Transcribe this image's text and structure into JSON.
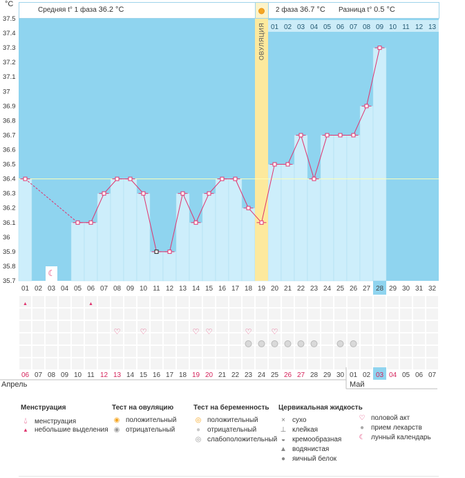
{
  "header": {
    "temp_unit": "°C",
    "phase1_label": "Средняя t° 1 фаза",
    "phase1_value": "36.2 °C",
    "phase2_label": "2 фаза",
    "phase2_value": "36.7 °C",
    "diff_label": "Разница t°",
    "diff_value": "0.5 °C"
  },
  "colors": {
    "sky": "#8fd4ef",
    "bar": "#cdeefb",
    "bar_edge": "#a9dcf0",
    "line": "#e0336e",
    "ovulation_band": "#fde99d",
    "coverline": "#ffffb8",
    "red_day": "#d4235b",
    "grid_bg": "#f4f4f4"
  },
  "ovulation_label": "ОВУЛЯЦИЯ",
  "chart_data": {
    "type": "bar",
    "ylim": [
      35.7,
      37.5
    ],
    "yticks": [
      "37.5",
      "37.4",
      "37.3",
      "37.2",
      "37.1",
      "37",
      "36.9",
      "36.8",
      "36.7",
      "36.6",
      "36.5",
      "36.4",
      "36.3",
      "36.2",
      "36.1",
      "36",
      "35.9",
      "35.8",
      "35.7"
    ],
    "coverline": 36.4,
    "ovulation_index": 18,
    "cycle_days": [
      "01",
      "02",
      "03",
      "04",
      "05",
      "06",
      "07",
      "08",
      "09",
      "10",
      "11",
      "12",
      "13",
      "14",
      "15",
      "16",
      "17",
      "18",
      "19",
      "20",
      "21",
      "22",
      "23",
      "24",
      "25",
      "26",
      "27",
      "28",
      "29",
      "30",
      "31",
      "32"
    ],
    "current_cycle_day": "28",
    "post_ovulation_days": [
      "01",
      "02",
      "03",
      "04",
      "05",
      "06",
      "07",
      "08",
      "09",
      "10",
      "11",
      "12",
      "13"
    ],
    "temperatures": [
      36.4,
      null,
      null,
      null,
      36.1,
      36.1,
      36.3,
      36.4,
      36.4,
      36.3,
      35.9,
      35.9,
      36.3,
      36.1,
      36.3,
      36.4,
      36.4,
      36.2,
      36.1,
      36.5,
      36.5,
      36.7,
      36.4,
      36.7,
      36.7,
      36.7,
      36.9,
      37.3,
      null,
      null,
      null,
      null
    ],
    "highlight_point_index": 10,
    "dates": [
      "06",
      "07",
      "08",
      "09",
      "10",
      "11",
      "12",
      "13",
      "14",
      "15",
      "16",
      "17",
      "18",
      "19",
      "20",
      "21",
      "22",
      "23",
      "24",
      "25",
      "26",
      "27",
      "28",
      "29",
      "30",
      "01",
      "02",
      "03",
      "04",
      "05",
      "06",
      "07"
    ],
    "red_date_indices": [
      0,
      6,
      7,
      13,
      14,
      20,
      21,
      27,
      28
    ],
    "current_date": "03",
    "month_labels": [
      "Апрель",
      "Май"
    ],
    "marks": {
      "menstruation": [
        0,
        5
      ],
      "lunar": [
        2
      ],
      "sex": [
        7,
        9,
        13,
        14,
        17,
        19
      ],
      "medication": [
        17,
        18,
        19,
        20,
        21,
        22,
        24,
        25
      ]
    }
  },
  "legend": {
    "menstruation": {
      "title": "Менструация",
      "items": [
        {
          "icon": "drop-large",
          "label": "менструация"
        },
        {
          "icon": "drop-small",
          "label": "небольшие выделения"
        }
      ]
    },
    "ovulation_test": {
      "title": "Тест на овуляцию",
      "items": [
        {
          "icon": "sun-orange",
          "label": "положительный"
        },
        {
          "icon": "circle-grey",
          "label": "отрицательный"
        }
      ]
    },
    "pregnancy_test": {
      "title": "Тест на беременность",
      "items": [
        {
          "icon": "sun-orange",
          "label": "положительный"
        },
        {
          "icon": "circle-grey",
          "label": "отрицательный"
        },
        {
          "icon": "circle-grey-dot",
          "label": "слабоположительный"
        }
      ]
    },
    "cervical": {
      "title": "Цервикальная жидкость",
      "items": [
        {
          "icon": "cross",
          "label": "сухо"
        },
        {
          "icon": "sticky",
          "label": "клейкая"
        },
        {
          "icon": "creamy",
          "label": "кремообразная"
        },
        {
          "icon": "drop-grey",
          "label": "водянистая"
        },
        {
          "icon": "egg",
          "label": "яичный белок"
        }
      ]
    },
    "other": {
      "items": [
        {
          "icon": "heart",
          "label": "половой акт"
        },
        {
          "icon": "pill",
          "label": "прием лекарств"
        },
        {
          "icon": "moon",
          "label": "лунный календарь"
        }
      ]
    }
  }
}
